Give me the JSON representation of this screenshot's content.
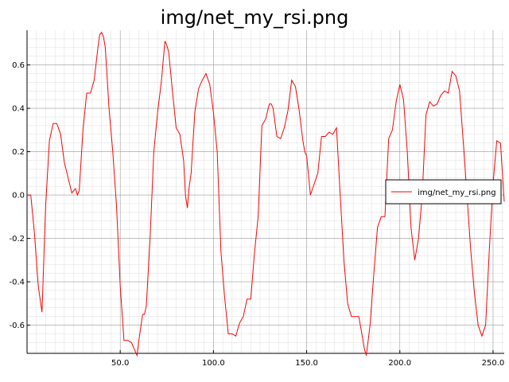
{
  "chart_data": {
    "type": "line",
    "title": "img/net_my_rsi.png",
    "xlabel": "",
    "ylabel": "",
    "xlim": [
      0,
      256
    ],
    "ylim": [
      -0.73,
      0.76
    ],
    "grid": true,
    "legend_position": "right",
    "x_ticks": [
      50,
      100,
      150,
      200,
      250
    ],
    "x_tick_labels": [
      "50.0",
      "100.0",
      "150.0",
      "200.0",
      "250.0"
    ],
    "y_ticks": [
      -0.6,
      -0.4,
      -0.2,
      0.0,
      0.2,
      0.4,
      0.6
    ],
    "y_tick_labels": [
      "-0.6",
      "-0.4",
      "-0.2",
      "0.0",
      "0.2",
      "0.4",
      "0.6"
    ],
    "colors": {
      "series": "#ff0000",
      "axis": "#000000",
      "major_grid": "#999999",
      "minor_grid": "#dddddd"
    },
    "series": [
      {
        "name": "img/net_my_rsi.png",
        "x": [
          0,
          2,
          4,
          6,
          8,
          10,
          12,
          14,
          16,
          18,
          20,
          22,
          24,
          25,
          26,
          27,
          28,
          30,
          32,
          34,
          36,
          38,
          39,
          40,
          41,
          42,
          44,
          46,
          48,
          50,
          52,
          54,
          56,
          58,
          59,
          60,
          62,
          63,
          64,
          66,
          68,
          70,
          72,
          74,
          75,
          76,
          78,
          80,
          82,
          84,
          85,
          86,
          87,
          88,
          90,
          92,
          94,
          96,
          98,
          100,
          102,
          104,
          106,
          108,
          110,
          112,
          114,
          116,
          118,
          120,
          122,
          124,
          126,
          128,
          130,
          131,
          132,
          134,
          136,
          138,
          140,
          142,
          144,
          146,
          148,
          149,
          150,
          152,
          154,
          156,
          158,
          160,
          162,
          164,
          166,
          168,
          170,
          172,
          174,
          176,
          178,
          180,
          181,
          182,
          184,
          186,
          188,
          190,
          192,
          194,
          196,
          198,
          200,
          202,
          204,
          206,
          208,
          210,
          212,
          214,
          216,
          218,
          220,
          222,
          224,
          226,
          228,
          230,
          232,
          234,
          236,
          238,
          240,
          242,
          244,
          246,
          248,
          250,
          252,
          254,
          256
        ],
        "values": [
          0.0,
          0.0,
          -0.18,
          -0.42,
          -0.54,
          -0.05,
          0.25,
          0.33,
          0.33,
          0.28,
          0.15,
          0.08,
          0.01,
          0.02,
          0.03,
          0.0,
          0.02,
          0.3,
          0.47,
          0.47,
          0.53,
          0.68,
          0.74,
          0.75,
          0.73,
          0.68,
          0.4,
          0.2,
          -0.05,
          -0.42,
          -0.67,
          -0.67,
          -0.68,
          -0.72,
          -0.74,
          -0.67,
          -0.55,
          -0.55,
          -0.51,
          -0.2,
          0.2,
          0.38,
          0.52,
          0.71,
          0.69,
          0.66,
          0.48,
          0.31,
          0.28,
          0.16,
          0.0,
          -0.06,
          0.04,
          0.1,
          0.38,
          0.49,
          0.53,
          0.56,
          0.51,
          0.38,
          0.2,
          -0.26,
          -0.47,
          -0.64,
          -0.64,
          -0.65,
          -0.59,
          -0.56,
          -0.48,
          -0.48,
          -0.27,
          -0.1,
          0.32,
          0.35,
          0.42,
          0.42,
          0.4,
          0.27,
          0.26,
          0.31,
          0.39,
          0.53,
          0.5,
          0.39,
          0.25,
          0.2,
          0.18,
          0.0,
          0.05,
          0.1,
          0.27,
          0.27,
          0.29,
          0.28,
          0.31,
          0.0,
          -0.3,
          -0.5,
          -0.56,
          -0.56,
          -0.56,
          -0.66,
          -0.71,
          -0.74,
          -0.6,
          -0.37,
          -0.15,
          -0.1,
          -0.1,
          0.26,
          0.3,
          0.43,
          0.51,
          0.44,
          0.2,
          -0.15,
          -0.3,
          -0.2,
          0.0,
          0.37,
          0.43,
          0.41,
          0.42,
          0.46,
          0.48,
          0.47,
          0.57,
          0.55,
          0.48,
          0.25,
          0.0,
          -0.25,
          -0.45,
          -0.6,
          -0.65,
          -0.6,
          -0.25,
          0.05,
          0.25,
          0.24,
          -0.03
        ]
      }
    ]
  }
}
